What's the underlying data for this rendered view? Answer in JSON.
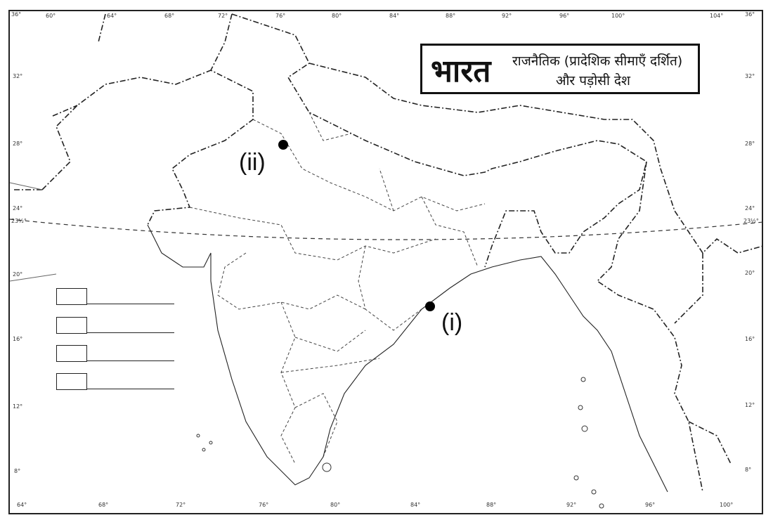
{
  "title": {
    "main": "भारत",
    "subtitle_line1": "राजनैतिक (प्रादेशिक सीमाएँ दर्शित)",
    "subtitle_line2": "और पड़ोसी देश"
  },
  "longitude_top": [
    "60°",
    "64°",
    "68°",
    "72°",
    "76°",
    "80°",
    "84°",
    "88°",
    "92°",
    "96°",
    "100°",
    "104°"
  ],
  "longitude_bottom": [
    "64°",
    "68°",
    "72°",
    "76°",
    "80°",
    "84°",
    "88°",
    "92°",
    "96°",
    "100°"
  ],
  "latitude_left": [
    "36°",
    "32°",
    "28°",
    "24°",
    "23½°",
    "20°",
    "16°",
    "12°",
    "8°"
  ],
  "latitude_right": [
    "36°",
    "32°",
    "28°",
    "24°",
    "23½°",
    "20°",
    "16°",
    "12°",
    "8°"
  ],
  "markers": [
    {
      "label": "(i)",
      "lon": 84.8,
      "lat": 19.3
    },
    {
      "label": "(ii)",
      "lon": 77.2,
      "lat": 28.6
    }
  ],
  "legend_rows": 4,
  "tropic_of_cancer": "dashed"
}
